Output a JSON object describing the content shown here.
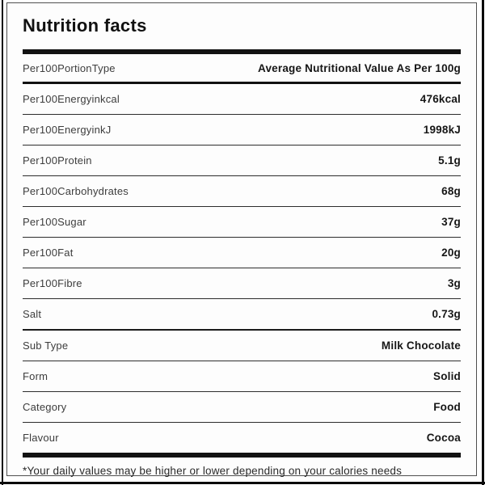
{
  "label": {
    "title": "Nutrition facts",
    "header": {
      "label": "Per100PortionType",
      "value": "Average Nutritional Value As Per 100g"
    },
    "nutrition_rows": [
      {
        "label": "Per100Energyinkcal",
        "value": "476kcal"
      },
      {
        "label": "Per100EnergyinkJ",
        "value": "1998kJ"
      },
      {
        "label": "Per100Protein",
        "value": "5.1g"
      },
      {
        "label": "Per100Carbohydrates",
        "value": "68g"
      },
      {
        "label": "Per100Sugar",
        "value": "37g"
      },
      {
        "label": "Per100Fat",
        "value": "20g"
      },
      {
        "label": "Per100Fibre",
        "value": "3g"
      },
      {
        "label": "Salt",
        "value": "0.73g"
      }
    ],
    "meta_rows": [
      {
        "label": "Sub Type",
        "value": "Milk Chocolate"
      },
      {
        "label": "Form",
        "value": "Solid"
      },
      {
        "label": "Category",
        "value": "Food"
      },
      {
        "label": "Flavour",
        "value": "Cocoa"
      }
    ],
    "footnote": "*Your daily values may be higher or lower depending on your calories needs",
    "colors": {
      "divider_heavy": "#121212",
      "divider_light": "#2d2d2d",
      "label_text": "#3d3d3d",
      "value_text": "#161616",
      "card_border": "#4f4f4f"
    }
  }
}
